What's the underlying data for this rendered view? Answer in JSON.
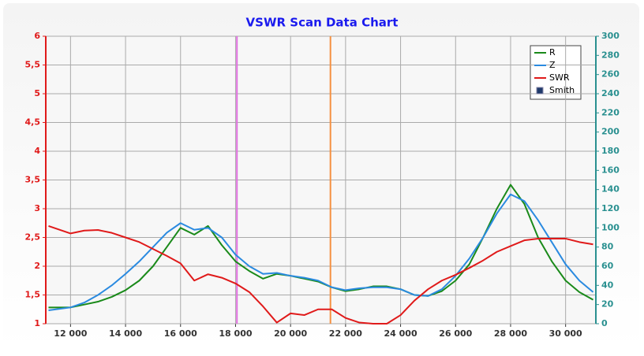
{
  "chart_data": {
    "type": "line",
    "title": "VSWR Scan Data Chart",
    "x": [
      11200,
      12000,
      12500,
      13000,
      13500,
      14000,
      14500,
      15000,
      15500,
      16000,
      16500,
      17000,
      17500,
      18000,
      18500,
      19000,
      19500,
      20000,
      20500,
      21000,
      21500,
      22000,
      22500,
      23000,
      23500,
      24000,
      24500,
      25000,
      25500,
      26000,
      26500,
      27000,
      27500,
      28000,
      28500,
      29000,
      29500,
      30000,
      30500,
      31000
    ],
    "series": [
      {
        "name": "R",
        "color": "#1a8a1a",
        "axis": "y2",
        "values": [
          17,
          17,
          20,
          23,
          28,
          35,
          45,
          60,
          80,
          100,
          93,
          102,
          82,
          65,
          55,
          47,
          52,
          50,
          47,
          44,
          38,
          34,
          36,
          39,
          39,
          36,
          30,
          29,
          34,
          45,
          62,
          90,
          120,
          145,
          125,
          90,
          65,
          45,
          33,
          25
        ]
      },
      {
        "name": "Z",
        "color": "#2a8ae0",
        "axis": "y2",
        "values": [
          14,
          17,
          22,
          30,
          40,
          52,
          65,
          80,
          95,
          105,
          98,
          100,
          90,
          72,
          60,
          52,
          53,
          50,
          48,
          45,
          38,
          35,
          37,
          38,
          38,
          36,
          30,
          29,
          36,
          50,
          68,
          90,
          115,
          135,
          128,
          108,
          85,
          62,
          45,
          33
        ]
      },
      {
        "name": "SWR",
        "color": "#e01a1a",
        "values": [
          2.7,
          2.57,
          2.62,
          2.63,
          2.58,
          2.5,
          2.42,
          2.3,
          2.18,
          2.05,
          1.75,
          1.86,
          1.8,
          1.7,
          1.55,
          1.3,
          1.02,
          1.18,
          1.15,
          1.25,
          1.25,
          1.1,
          1.02,
          1.0,
          1.0,
          1.15,
          1.4,
          1.6,
          1.75,
          1.85,
          1.97,
          2.1,
          2.25,
          2.35,
          2.45,
          2.48,
          2.48,
          2.48,
          2.42,
          2.38
        ]
      }
    ],
    "extra_legend": [
      {
        "name": "Smith",
        "color": "#1f3a6b"
      }
    ],
    "markers": [
      {
        "x": 18050,
        "color": "#e070e0"
      },
      {
        "x": 21450,
        "color": "#f59040"
      }
    ],
    "xlim": [
      11100,
      31100
    ],
    "xticks": [
      {
        "value": 12000,
        "label": "12 000"
      },
      {
        "value": 14000,
        "label": "14 000"
      },
      {
        "value": 16000,
        "label": "16 000"
      },
      {
        "value": 18000,
        "label": "18 000"
      },
      {
        "value": 20000,
        "label": "20 000"
      },
      {
        "value": 22000,
        "label": "22 000"
      },
      {
        "value": 24000,
        "label": "24 000"
      },
      {
        "value": 26000,
        "label": "26 000"
      },
      {
        "value": 28000,
        "label": "28 000"
      },
      {
        "value": 30000,
        "label": "30 000"
      }
    ],
    "ylim": [
      1,
      6
    ],
    "yticks": [
      1,
      {
        "value": 1.5,
        "label": "1,5"
      },
      2,
      {
        "value": 2.5,
        "label": "2,5"
      },
      3,
      {
        "value": 3.5,
        "label": "3,5"
      },
      4,
      {
        "value": 4.5,
        "label": "4,5"
      },
      5,
      {
        "value": 5.5,
        "label": "5,5"
      },
      6
    ],
    "y2lim": [
      0,
      300
    ],
    "y2ticks": [
      0,
      20,
      40,
      60,
      80,
      100,
      120,
      140,
      160,
      180,
      200,
      220,
      240,
      260,
      280,
      300
    ],
    "grid": true,
    "legend": "upper right"
  }
}
